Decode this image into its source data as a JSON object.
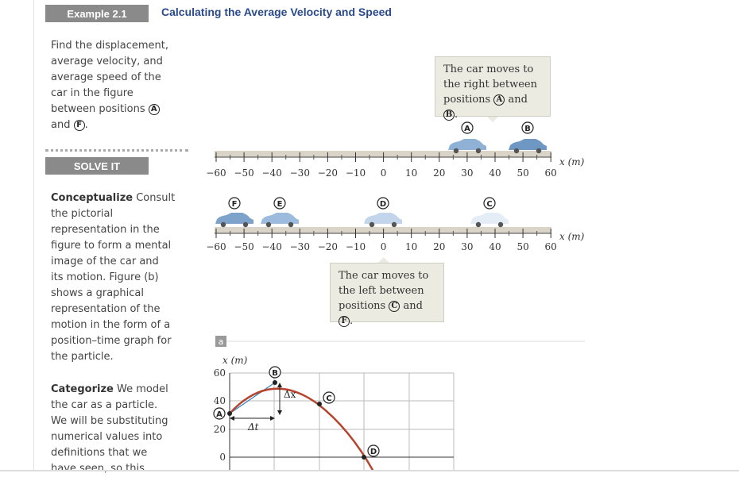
{
  "header": {
    "badge": "Example 2.1",
    "title": "Calculating the Average Velocity and Speed"
  },
  "intro": {
    "line1": "Find the displacement,",
    "line2": "average velocity, and",
    "line3": "average speed of the",
    "line4": "car in the figure",
    "line5": "between positions",
    "pos_a": "A",
    "line6": "and",
    "pos_f": "F"
  },
  "solve_label": "SOLVE IT",
  "conceptualize": {
    "title": "Conceptualize",
    "lines": [
      "Consult",
      "the pictorial",
      "representation in the",
      "figure to form a mental",
      "image of the car and",
      "its motion. Figure (b)",
      "shows a graphical",
      "representation of the",
      "motion in the form of a",
      "position–time graph for",
      "the particle."
    ]
  },
  "categorize": {
    "title": "Categorize",
    "lines": [
      "We model",
      "the car as a particle.",
      "We will be substituting",
      "numerical values into",
      "definitions that we",
      "have seen, so this"
    ]
  },
  "figure_a": {
    "callout_top": {
      "line1": "The car moves to",
      "line2": "the right between",
      "line3_pre": "positions",
      "a": "A",
      "and": "and",
      "b": "B",
      "end": "."
    },
    "callout_bottom": {
      "line1": "The car moves to",
      "line2": "the left between",
      "line3_pre": "positions",
      "c": "C",
      "and": "and",
      "f": "F",
      "end": "."
    },
    "axis_label": "x (m)",
    "ticks": [
      "−60",
      "−50",
      "−40",
      "−30",
      "−20",
      "−10",
      "0",
      "10",
      "20",
      "30",
      "40",
      "50",
      "60"
    ],
    "top_positions": [
      "A",
      "B"
    ],
    "bottom_positions": [
      "F",
      "E",
      "D",
      "C"
    ],
    "panel_label": "a"
  },
  "figure_b": {
    "y_label": "x (m)",
    "y_ticks": [
      "60",
      "40",
      "20",
      "0"
    ],
    "points": [
      "A",
      "B",
      "C",
      "D"
    ],
    "delta_x": "Δx",
    "delta_t": "Δt"
  },
  "colors": {
    "accent": "#2a4a8a",
    "curve": "#b5452e",
    "car": "#7fa3c9",
    "secant": "#3a86c8"
  }
}
